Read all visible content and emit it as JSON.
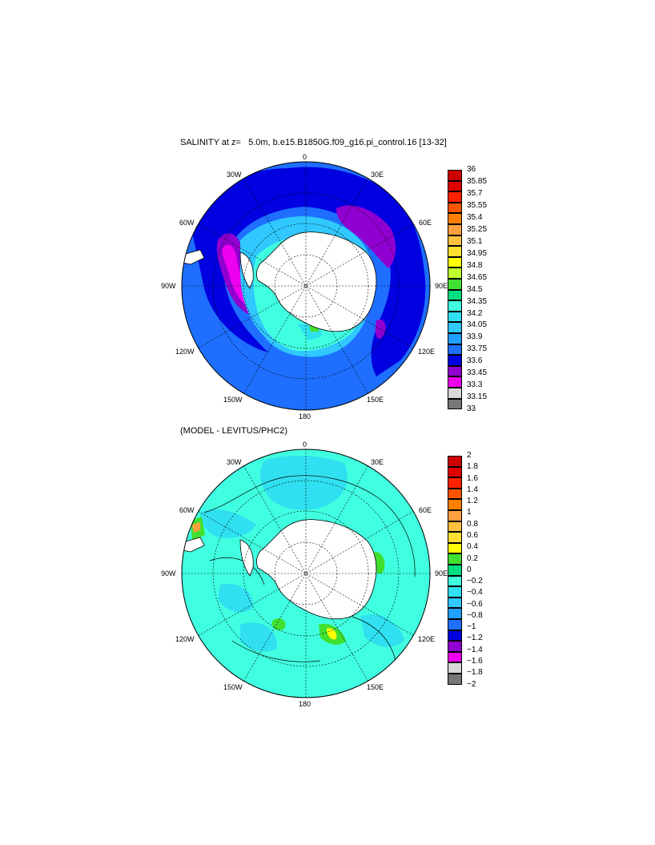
{
  "panel1": {
    "title": "SALINITY at z=   5.0m, b.e15.B1850G.f09_g16.pi_control.16 [13-32]",
    "lon_labels": {
      "top": "0",
      "tr": "30E",
      "rt": "60E",
      "right": "90E",
      "rb": "120E",
      "br": "150E",
      "bottom": "180",
      "bl": "150W",
      "lb": "120W",
      "left": "90W",
      "lt": "60W",
      "tl": "30W"
    },
    "colorbar": {
      "labels": [
        "36",
        "35.85",
        "35.7",
        "35.55",
        "35.4",
        "35.25",
        "35.1",
        "34.95",
        "34.8",
        "34.65",
        "34.5",
        "34.35",
        "34.2",
        "34.05",
        "33.9",
        "33.75",
        "33.6",
        "33.45",
        "33.3",
        "33.15",
        "33"
      ],
      "colors": [
        "#cc0000",
        "#e00000",
        "#ff2200",
        "#ff5500",
        "#ff8000",
        "#ffa040",
        "#ffc040",
        "#ffe030",
        "#ffff00",
        "#c0ff30",
        "#40e030",
        "#00e080",
        "#40ffe0",
        "#30e0f0",
        "#30c8ff",
        "#20a0ff",
        "#1e6fff",
        "#0000e0",
        "#9000d0",
        "#ee00ee",
        "#d8d8d8",
        "#777777"
      ]
    }
  },
  "panel2": {
    "title": "(MODEL - LEVITUS/PHC2)",
    "lon_labels": {
      "top": "0",
      "tr": "30E",
      "rt": "60E",
      "right": "90E",
      "rb": "120E",
      "br": "150E",
      "bottom": "180",
      "bl": "150W",
      "lb": "120W",
      "left": "90W",
      "lt": "60W",
      "tl": "30W"
    },
    "colorbar": {
      "labels": [
        "2",
        "1.8",
        "1.6",
        "1.4",
        "1.2",
        "1",
        "0.8",
        "0.6",
        "0.4",
        "0.2",
        "0",
        "−0.2",
        "−0.4",
        "−0.6",
        "−0.8",
        "−1",
        "−1.2",
        "−1.4",
        "−1.6",
        "−1.8",
        "−2"
      ],
      "colors": [
        "#cc0000",
        "#e00000",
        "#ff2200",
        "#ff5500",
        "#ff8000",
        "#ffa040",
        "#ffc040",
        "#ffe030",
        "#ffff00",
        "#40e030",
        "#00e080",
        "#40ffe0",
        "#30e0f0",
        "#30c8ff",
        "#20a0ff",
        "#1e6fff",
        "#0000e0",
        "#9000d0",
        "#ee00ee",
        "#d8d8d8",
        "#777777"
      ]
    }
  }
}
